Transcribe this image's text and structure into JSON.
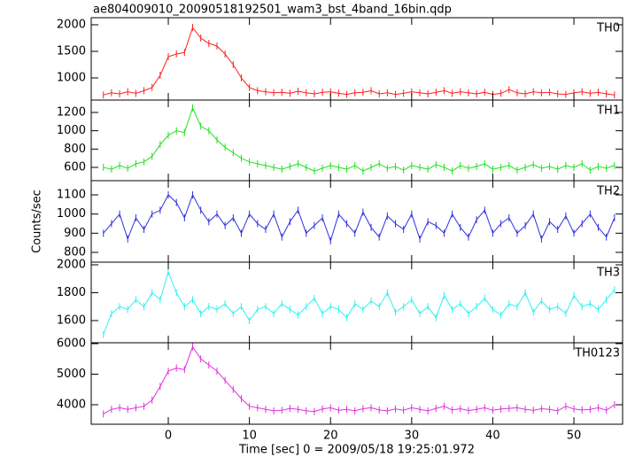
{
  "title": "ae804009010_20090518192501_wam3_bst_4band_16bin.qdp",
  "x_label": "Time [sec] 0 = 2009/05/18 19:25:01.972",
  "y_label": "Counts/sec",
  "chart_data": [
    {
      "type": "line",
      "label": "TH0",
      "color": "#ff2020",
      "xlim": [
        -9.5,
        56
      ],
      "xticks": [
        0,
        10,
        20,
        30,
        40,
        50
      ],
      "ylim": [
        583,
        2133
      ],
      "yticks": [
        1000,
        1500,
        2000
      ],
      "x": [
        -8,
        -7,
        -6,
        -5,
        -4,
        -3,
        -2,
        -1,
        0,
        1,
        2,
        3,
        4,
        5,
        6,
        7,
        8,
        9,
        10,
        11,
        12,
        13,
        14,
        15,
        16,
        17,
        18,
        19,
        20,
        21,
        22,
        23,
        24,
        25,
        26,
        27,
        28,
        29,
        30,
        31,
        32,
        33,
        34,
        35,
        36,
        37,
        38,
        39,
        40,
        41,
        42,
        43,
        44,
        45,
        46,
        47,
        48,
        49,
        50,
        51,
        52,
        53,
        54,
        55
      ],
      "values": [
        680,
        720,
        700,
        740,
        710,
        760,
        820,
        1050,
        1400,
        1450,
        1480,
        1950,
        1750,
        1650,
        1600,
        1450,
        1250,
        1000,
        820,
        760,
        740,
        720,
        730,
        710,
        750,
        720,
        700,
        730,
        740,
        710,
        690,
        720,
        730,
        760,
        700,
        720,
        690,
        710,
        740,
        720,
        700,
        730,
        760,
        710,
        740,
        720,
        700,
        730,
        690,
        710,
        780,
        720,
        700,
        740,
        720,
        730,
        700,
        690,
        720,
        740,
        710,
        730,
        700,
        680
      ]
    },
    {
      "type": "line",
      "label": "TH1",
      "color": "#20e020",
      "xlim": [
        -9.5,
        56
      ],
      "xticks": [
        0,
        10,
        20,
        30,
        40,
        50
      ],
      "ylim": [
        455,
        1335
      ],
      "yticks": [
        600,
        800,
        1000,
        1200
      ],
      "x": [
        -8,
        -7,
        -6,
        -5,
        -4,
        -3,
        -2,
        -1,
        0,
        1,
        2,
        3,
        4,
        5,
        6,
        7,
        8,
        9,
        10,
        11,
        12,
        13,
        14,
        15,
        16,
        17,
        18,
        19,
        20,
        21,
        22,
        23,
        24,
        25,
        26,
        27,
        28,
        29,
        30,
        31,
        32,
        33,
        34,
        35,
        36,
        37,
        38,
        39,
        40,
        41,
        42,
        43,
        44,
        45,
        46,
        47,
        48,
        49,
        50,
        51,
        52,
        53,
        54,
        55
      ],
      "values": [
        600,
        580,
        620,
        590,
        640,
        660,
        720,
        850,
        950,
        1000,
        980,
        1250,
        1050,
        1000,
        900,
        820,
        760,
        700,
        660,
        640,
        620,
        600,
        580,
        610,
        640,
        600,
        560,
        590,
        620,
        600,
        580,
        620,
        560,
        600,
        640,
        590,
        610,
        570,
        620,
        600,
        580,
        630,
        600,
        560,
        620,
        590,
        610,
        640,
        580,
        600,
        620,
        570,
        600,
        630,
        590,
        610,
        580,
        620,
        600,
        640,
        570,
        610,
        590,
        620
      ]
    },
    {
      "type": "line",
      "label": "TH2",
      "color": "#3030e0",
      "xlim": [
        -9.5,
        56
      ],
      "xticks": [
        0,
        10,
        20,
        30,
        40,
        50
      ],
      "ylim": [
        749,
        1174
      ],
      "yticks": [
        800,
        900,
        1000,
        1100
      ],
      "x": [
        -8,
        -7,
        -6,
        -5,
        -4,
        -3,
        -2,
        -1,
        0,
        1,
        2,
        3,
        4,
        5,
        6,
        7,
        8,
        9,
        10,
        11,
        12,
        13,
        14,
        15,
        16,
        17,
        18,
        19,
        20,
        21,
        22,
        23,
        24,
        25,
        26,
        27,
        28,
        29,
        30,
        31,
        32,
        33,
        34,
        35,
        36,
        37,
        38,
        39,
        40,
        41,
        42,
        43,
        44,
        45,
        46,
        47,
        48,
        49,
        50,
        51,
        52,
        53,
        54,
        55
      ],
      "values": [
        900,
        950,
        1000,
        870,
        980,
        920,
        1000,
        1020,
        1100,
        1060,
        980,
        1100,
        1020,
        960,
        1000,
        940,
        980,
        900,
        1000,
        950,
        920,
        1000,
        880,
        960,
        1020,
        900,
        940,
        980,
        860,
        1000,
        950,
        900,
        1010,
        930,
        880,
        990,
        950,
        920,
        1000,
        870,
        960,
        940,
        900,
        1000,
        930,
        880,
        970,
        1020,
        900,
        950,
        980,
        900,
        940,
        1000,
        870,
        960,
        920,
        990,
        900,
        950,
        1000,
        930,
        880,
        980
      ]
    },
    {
      "type": "line",
      "label": "TH3",
      "color": "#30f0f0",
      "xlim": [
        -9.5,
        56
      ],
      "xticks": [
        0,
        10,
        20,
        30,
        40,
        50
      ],
      "ylim": [
        1441,
        2019
      ],
      "yticks": [
        1600,
        1800,
        2000
      ],
      "x": [
        -8,
        -7,
        -6,
        -5,
        -4,
        -3,
        -2,
        -1,
        0,
        1,
        2,
        3,
        4,
        5,
        6,
        7,
        8,
        9,
        10,
        11,
        12,
        13,
        14,
        15,
        16,
        17,
        18,
        19,
        20,
        21,
        22,
        23,
        24,
        25,
        26,
        27,
        28,
        29,
        30,
        31,
        32,
        33,
        34,
        35,
        36,
        37,
        38,
        39,
        40,
        41,
        42,
        43,
        44,
        45,
        46,
        47,
        48,
        49,
        50,
        51,
        52,
        53,
        54,
        55
      ],
      "values": [
        1500,
        1650,
        1700,
        1680,
        1750,
        1700,
        1800,
        1750,
        1950,
        1800,
        1700,
        1750,
        1650,
        1700,
        1680,
        1720,
        1650,
        1700,
        1600,
        1680,
        1700,
        1650,
        1720,
        1680,
        1640,
        1700,
        1760,
        1650,
        1700,
        1680,
        1620,
        1720,
        1680,
        1740,
        1700,
        1800,
        1660,
        1700,
        1750,
        1650,
        1700,
        1620,
        1780,
        1680,
        1720,
        1650,
        1700,
        1760,
        1680,
        1640,
        1720,
        1700,
        1800,
        1660,
        1740,
        1680,
        1700,
        1650,
        1780,
        1700,
        1720,
        1680,
        1750,
        1820
      ]
    },
    {
      "type": "line",
      "label": "TH0123",
      "color": "#e030e0",
      "xlim": [
        -9.5,
        56
      ],
      "xticks": [
        0,
        10,
        20,
        30,
        40,
        50
      ],
      "ylim": [
        3362,
        6029
      ],
      "yticks": [
        4000,
        5000,
        6000
      ],
      "x": [
        -8,
        -7,
        -6,
        -5,
        -4,
        -3,
        -2,
        -1,
        0,
        1,
        2,
        3,
        4,
        5,
        6,
        7,
        8,
        9,
        10,
        11,
        12,
        13,
        14,
        15,
        16,
        17,
        18,
        19,
        20,
        21,
        22,
        23,
        24,
        25,
        26,
        27,
        28,
        29,
        30,
        31,
        32,
        33,
        34,
        35,
        36,
        37,
        38,
        39,
        40,
        41,
        42,
        43,
        44,
        45,
        46,
        47,
        48,
        49,
        50,
        51,
        52,
        53,
        54,
        55
      ],
      "values": [
        3700,
        3850,
        3900,
        3850,
        3900,
        3950,
        4150,
        4600,
        5100,
        5200,
        5150,
        5900,
        5500,
        5300,
        5100,
        4800,
        4500,
        4200,
        3950,
        3900,
        3850,
        3800,
        3820,
        3880,
        3850,
        3800,
        3780,
        3860,
        3900,
        3820,
        3850,
        3800,
        3870,
        3900,
        3830,
        3800,
        3860,
        3820,
        3900,
        3850,
        3800,
        3880,
        3950,
        3830,
        3870,
        3810,
        3850,
        3900,
        3820,
        3860,
        3880,
        3900,
        3850,
        3820,
        3870,
        3850,
        3800,
        3950,
        3860,
        3830,
        3850,
        3900,
        3820,
        4000
      ]
    }
  ]
}
